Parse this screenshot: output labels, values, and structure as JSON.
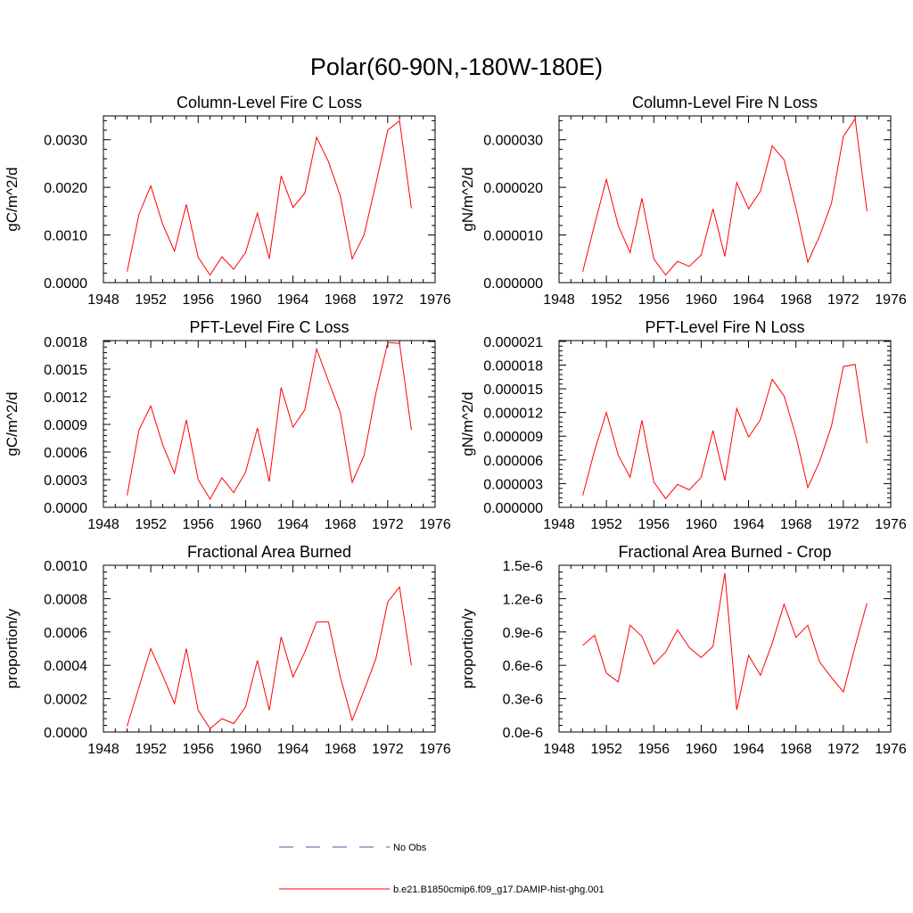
{
  "title": "Polar(60-90N,-180W-180E)",
  "colors": {
    "model": "#ff0000",
    "obs": "#4a5aa8",
    "axis": "#000000"
  },
  "legend": [
    {
      "label": "No Obs",
      "style": "dashed",
      "color": "#4a5aa8"
    },
    {
      "label": "b.e21.B1850cmip6.f09_g17.DAMIP-hist-ghg.001",
      "style": "solid",
      "color": "#ff0000"
    }
  ],
  "chart_data": [
    {
      "type": "line",
      "title": "Column-Level Fire C Loss",
      "ylabel": "gC/m^2/d",
      "xlim": [
        1948,
        1976
      ],
      "ylim": [
        0,
        0.0035
      ],
      "xticks": [
        "1948",
        "1952",
        "1956",
        "1960",
        "1964",
        "1968",
        "1972",
        "1976"
      ],
      "yticks": [
        {
          "value": 0,
          "label": "0.0000"
        },
        {
          "value": 0.001,
          "label": "0.0010"
        },
        {
          "value": 0.002,
          "label": "0.0020"
        },
        {
          "value": 0.003,
          "label": "0.0030"
        }
      ],
      "x": [
        1950,
        1951,
        1952,
        1953,
        1954,
        1955,
        1956,
        1957,
        1958,
        1959,
        1960,
        1961,
        1962,
        1963,
        1964,
        1965,
        1966,
        1967,
        1968,
        1969,
        1970,
        1971,
        1972,
        1973,
        1974
      ],
      "series": [
        {
          "values": [
            0.00023,
            0.00144,
            0.00203,
            0.00123,
            0.00066,
            0.00164,
            0.00053,
            0.00016,
            0.00054,
            0.00028,
            0.00063,
            0.00146,
            0.0005,
            0.00224,
            0.00158,
            0.00188,
            0.00305,
            0.00254,
            0.00182,
            0.0005,
            0.001,
            0.00208,
            0.0032,
            0.0034,
            0.00156
          ]
        }
      ]
    },
    {
      "type": "line",
      "title": "Column-Level Fire N Loss",
      "ylabel": "gN/m^2/d",
      "xlim": [
        1948,
        1976
      ],
      "ylim": [
        0,
        3.5e-05
      ],
      "xticks": [
        "1948",
        "1952",
        "1956",
        "1960",
        "1964",
        "1968",
        "1972",
        "1976"
      ],
      "yticks": [
        {
          "value": 0,
          "label": "0.000000"
        },
        {
          "value": 1e-05,
          "label": "0.000010"
        },
        {
          "value": 2e-05,
          "label": "0.000020"
        },
        {
          "value": 3e-05,
          "label": "0.000030"
        }
      ],
      "x": [
        1950,
        1951,
        1952,
        1953,
        1954,
        1955,
        1956,
        1957,
        1958,
        1959,
        1960,
        1961,
        1962,
        1963,
        1964,
        1965,
        1966,
        1967,
        1968,
        1969,
        1970,
        1971,
        1972,
        1973,
        1974
      ],
      "series": [
        {
          "values": [
            2.3e-06,
            1.22e-05,
            2.17e-05,
            1.2e-05,
            6.3e-06,
            1.77e-05,
            5e-06,
            1.6e-06,
            4.5e-06,
            3.4e-06,
            5.8e-06,
            1.55e-05,
            5.5e-06,
            2.1e-05,
            1.55e-05,
            1.92e-05,
            2.87e-05,
            2.58e-05,
            1.56e-05,
            4.3e-06,
            9.8e-06,
            1.67e-05,
            3.07e-05,
            3.44e-05,
            1.5e-05
          ]
        }
      ]
    },
    {
      "type": "line",
      "title": "PFT-Level Fire C Loss",
      "ylabel": "gC/m^2/d",
      "xlim": [
        1948,
        1976
      ],
      "ylim": [
        0,
        0.00181
      ],
      "xticks": [
        "1948",
        "1952",
        "1956",
        "1960",
        "1964",
        "1968",
        "1972",
        "1976"
      ],
      "yticks": [
        {
          "value": 0,
          "label": "0.0000"
        },
        {
          "value": 0.0003,
          "label": "0.0003"
        },
        {
          "value": 0.0006,
          "label": "0.0006"
        },
        {
          "value": 0.0009,
          "label": "0.0009"
        },
        {
          "value": 0.0012,
          "label": "0.0012"
        },
        {
          "value": 0.0015,
          "label": "0.0015"
        },
        {
          "value": 0.0018,
          "label": "0.0018"
        }
      ],
      "x": [
        1950,
        1951,
        1952,
        1953,
        1954,
        1955,
        1956,
        1957,
        1958,
        1959,
        1960,
        1961,
        1962,
        1963,
        1964,
        1965,
        1966,
        1967,
        1968,
        1969,
        1970,
        1971,
        1972,
        1973,
        1974
      ],
      "series": [
        {
          "values": [
            0.00013,
            0.00084,
            0.0011,
            0.00068,
            0.00037,
            0.00095,
            0.0003,
            9e-05,
            0.00032,
            0.00016,
            0.00038,
            0.00086,
            0.00028,
            0.0013,
            0.00087,
            0.00106,
            0.00172,
            0.00137,
            0.00103,
            0.00027,
            0.00056,
            0.00124,
            0.00179,
            0.00178,
            0.00084
          ]
        }
      ]
    },
    {
      "type": "line",
      "title": "PFT-Level Fire N Loss",
      "ylabel": "gN/m^2/d",
      "xlim": [
        1948,
        1976
      ],
      "ylim": [
        0,
        2.11e-05
      ],
      "xticks": [
        "1948",
        "1952",
        "1956",
        "1960",
        "1964",
        "1968",
        "1972",
        "1976"
      ],
      "yticks": [
        {
          "value": 0,
          "label": "0.000000"
        },
        {
          "value": 3e-06,
          "label": "0.000003"
        },
        {
          "value": 6e-06,
          "label": "0.000006"
        },
        {
          "value": 9e-06,
          "label": "0.000009"
        },
        {
          "value": 1.2e-05,
          "label": "0.000012"
        },
        {
          "value": 1.5e-05,
          "label": "0.000015"
        },
        {
          "value": 1.8e-05,
          "label": "0.000018"
        },
        {
          "value": 2.1e-05,
          "label": "0.000021"
        }
      ],
      "x": [
        1950,
        1951,
        1952,
        1953,
        1954,
        1955,
        1956,
        1957,
        1958,
        1959,
        1960,
        1961,
        1962,
        1963,
        1964,
        1965,
        1966,
        1967,
        1968,
        1969,
        1970,
        1971,
        1972,
        1973,
        1974
      ],
      "series": [
        {
          "values": [
            1.5e-06,
            7.2e-06,
            1.2e-05,
            6.6e-06,
            3.8e-06,
            1.1e-05,
            3.2e-06,
            1.1e-06,
            2.9e-06,
            2.2e-06,
            3.8e-06,
            9.7e-06,
            3.4e-06,
            1.25e-05,
            8.9e-06,
            1.11e-05,
            1.62e-05,
            1.41e-05,
            9e-06,
            2.5e-06,
            5.8e-06,
            1.03e-05,
            1.78e-05,
            1.81e-05,
            8.1e-06
          ]
        }
      ]
    },
    {
      "type": "line",
      "title": "Fractional Area Burned",
      "ylabel": "proportion/y",
      "xlim": [
        1948,
        1976
      ],
      "ylim": [
        0,
        0.001
      ],
      "xticks": [
        "1948",
        "1952",
        "1956",
        "1960",
        "1964",
        "1968",
        "1972",
        "1976"
      ],
      "yticks": [
        {
          "value": 0,
          "label": "0.0000"
        },
        {
          "value": 0.0002,
          "label": "0.0002"
        },
        {
          "value": 0.0004,
          "label": "0.0004"
        },
        {
          "value": 0.0006,
          "label": "0.0006"
        },
        {
          "value": 0.0008,
          "label": "0.0008"
        },
        {
          "value": 0.001,
          "label": "0.0010"
        }
      ],
      "x": [
        1950,
        1951,
        1952,
        1953,
        1954,
        1955,
        1956,
        1957,
        1958,
        1959,
        1960,
        1961,
        1962,
        1963,
        1964,
        1965,
        1966,
        1967,
        1968,
        1969,
        1970,
        1971,
        1972,
        1973,
        1974
      ],
      "series": [
        {
          "values": [
            3.5e-05,
            0.00027,
            0.0005,
            0.00034,
            0.00017,
            0.0005,
            0.00013,
            2e-05,
            8e-05,
            5e-05,
            0.00015,
            0.00043,
            0.00013,
            0.00057,
            0.00033,
            0.00048,
            0.00066,
            0.00066,
            0.00033,
            7e-05,
            0.00025,
            0.00044,
            0.00078,
            0.00087,
            0.0004
          ]
        }
      ]
    },
    {
      "type": "line",
      "title": "Fractional Area Burned - Crop",
      "ylabel": "proportion/y",
      "xlim": [
        1948,
        1976
      ],
      "ylim": [
        0,
        1.5e-06
      ],
      "xticks": [
        "1948",
        "1952",
        "1956",
        "1960",
        "1964",
        "1968",
        "1972",
        "1976"
      ],
      "yticks": [
        {
          "value": 0,
          "label": "0.0e-6"
        },
        {
          "value": 3e-07,
          "label": "0.3e-6"
        },
        {
          "value": 6e-07,
          "label": "0.6e-6"
        },
        {
          "value": 9e-07,
          "label": "0.9e-6"
        },
        {
          "value": 1.2e-06,
          "label": "1.2e-6"
        },
        {
          "value": 1.5e-06,
          "label": "1.5e-6"
        }
      ],
      "x": [
        1950,
        1951,
        1952,
        1953,
        1954,
        1955,
        1956,
        1957,
        1958,
        1959,
        1960,
        1961,
        1962,
        1963,
        1964,
        1965,
        1966,
        1967,
        1968,
        1969,
        1970,
        1971,
        1972,
        1973,
        1974
      ],
      "series": [
        {
          "values": [
            7.8e-07,
            8.7e-07,
            5.3e-07,
            4.5e-07,
            9.6e-07,
            8.6e-07,
            6.1e-07,
            7.2e-07,
            9.2e-07,
            7.6e-07,
            6.7e-07,
            7.7e-07,
            1.43e-06,
            2e-07,
            6.9e-07,
            5.1e-07,
            8e-07,
            1.15e-06,
            8.5e-07,
            9.6e-07,
            6.3e-07,
            4.9e-07,
            3.6e-07,
            7.7e-07,
            1.16e-06
          ]
        }
      ]
    }
  ]
}
